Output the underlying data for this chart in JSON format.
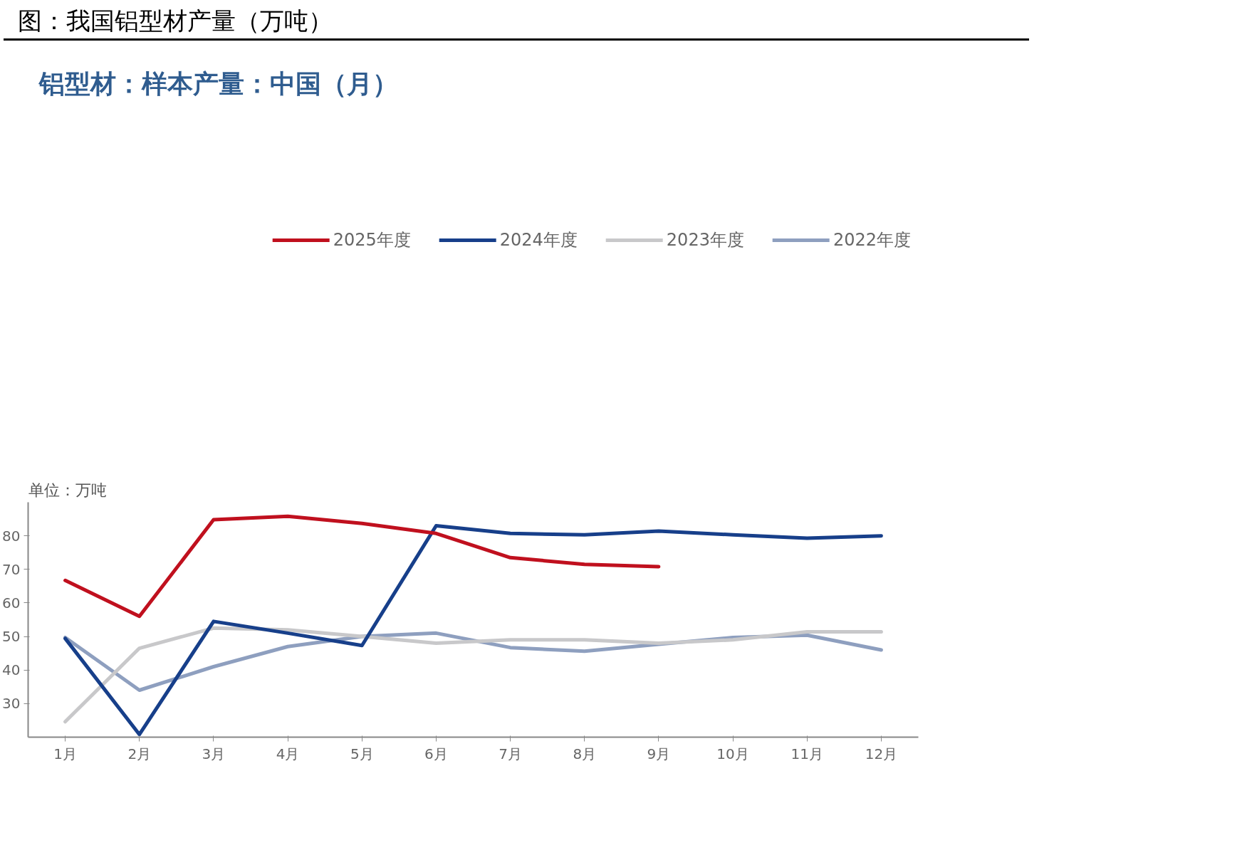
{
  "chart_data": {
    "type": "line",
    "title": "图：我国铝型材产量（万吨）",
    "subtitle": "铝型材：样本产量：中国（月）",
    "ylabel": "单位：万吨",
    "categories": [
      "1月",
      "2月",
      "3月",
      "4月",
      "5月",
      "6月",
      "7月",
      "8月",
      "9月",
      "10月",
      "11月",
      "12月"
    ],
    "series": [
      {
        "name": "2025年度",
        "color": "#c0101e",
        "values": [
          66.7,
          56,
          84.8,
          85.8,
          83.7,
          80.7,
          73.5,
          71.5,
          70.8,
          null,
          null,
          null
        ]
      },
      {
        "name": "2024年度",
        "color": "#173f8a",
        "values": [
          49.4,
          20.8,
          54.5,
          51,
          47.3,
          83,
          80.7,
          80.3,
          81.4,
          80.3,
          79.3,
          80
        ]
      },
      {
        "name": "2023年度",
        "color": "#c8c8ca",
        "values": [
          24.6,
          46.5,
          52.5,
          52,
          50,
          48,
          49,
          49,
          48,
          49,
          51.4,
          51.4
        ]
      },
      {
        "name": "2022年度",
        "color": "#8e9fbf",
        "values": [
          49.7,
          34,
          41,
          47,
          50,
          51,
          46.7,
          45.6,
          47.7,
          49.7,
          50.4,
          46
        ]
      }
    ],
    "ylim": [
      20,
      90
    ],
    "yticks": [
      30,
      40,
      50,
      60,
      70,
      80
    ],
    "grid": false,
    "legend": "top",
    "line_style": "solid"
  }
}
